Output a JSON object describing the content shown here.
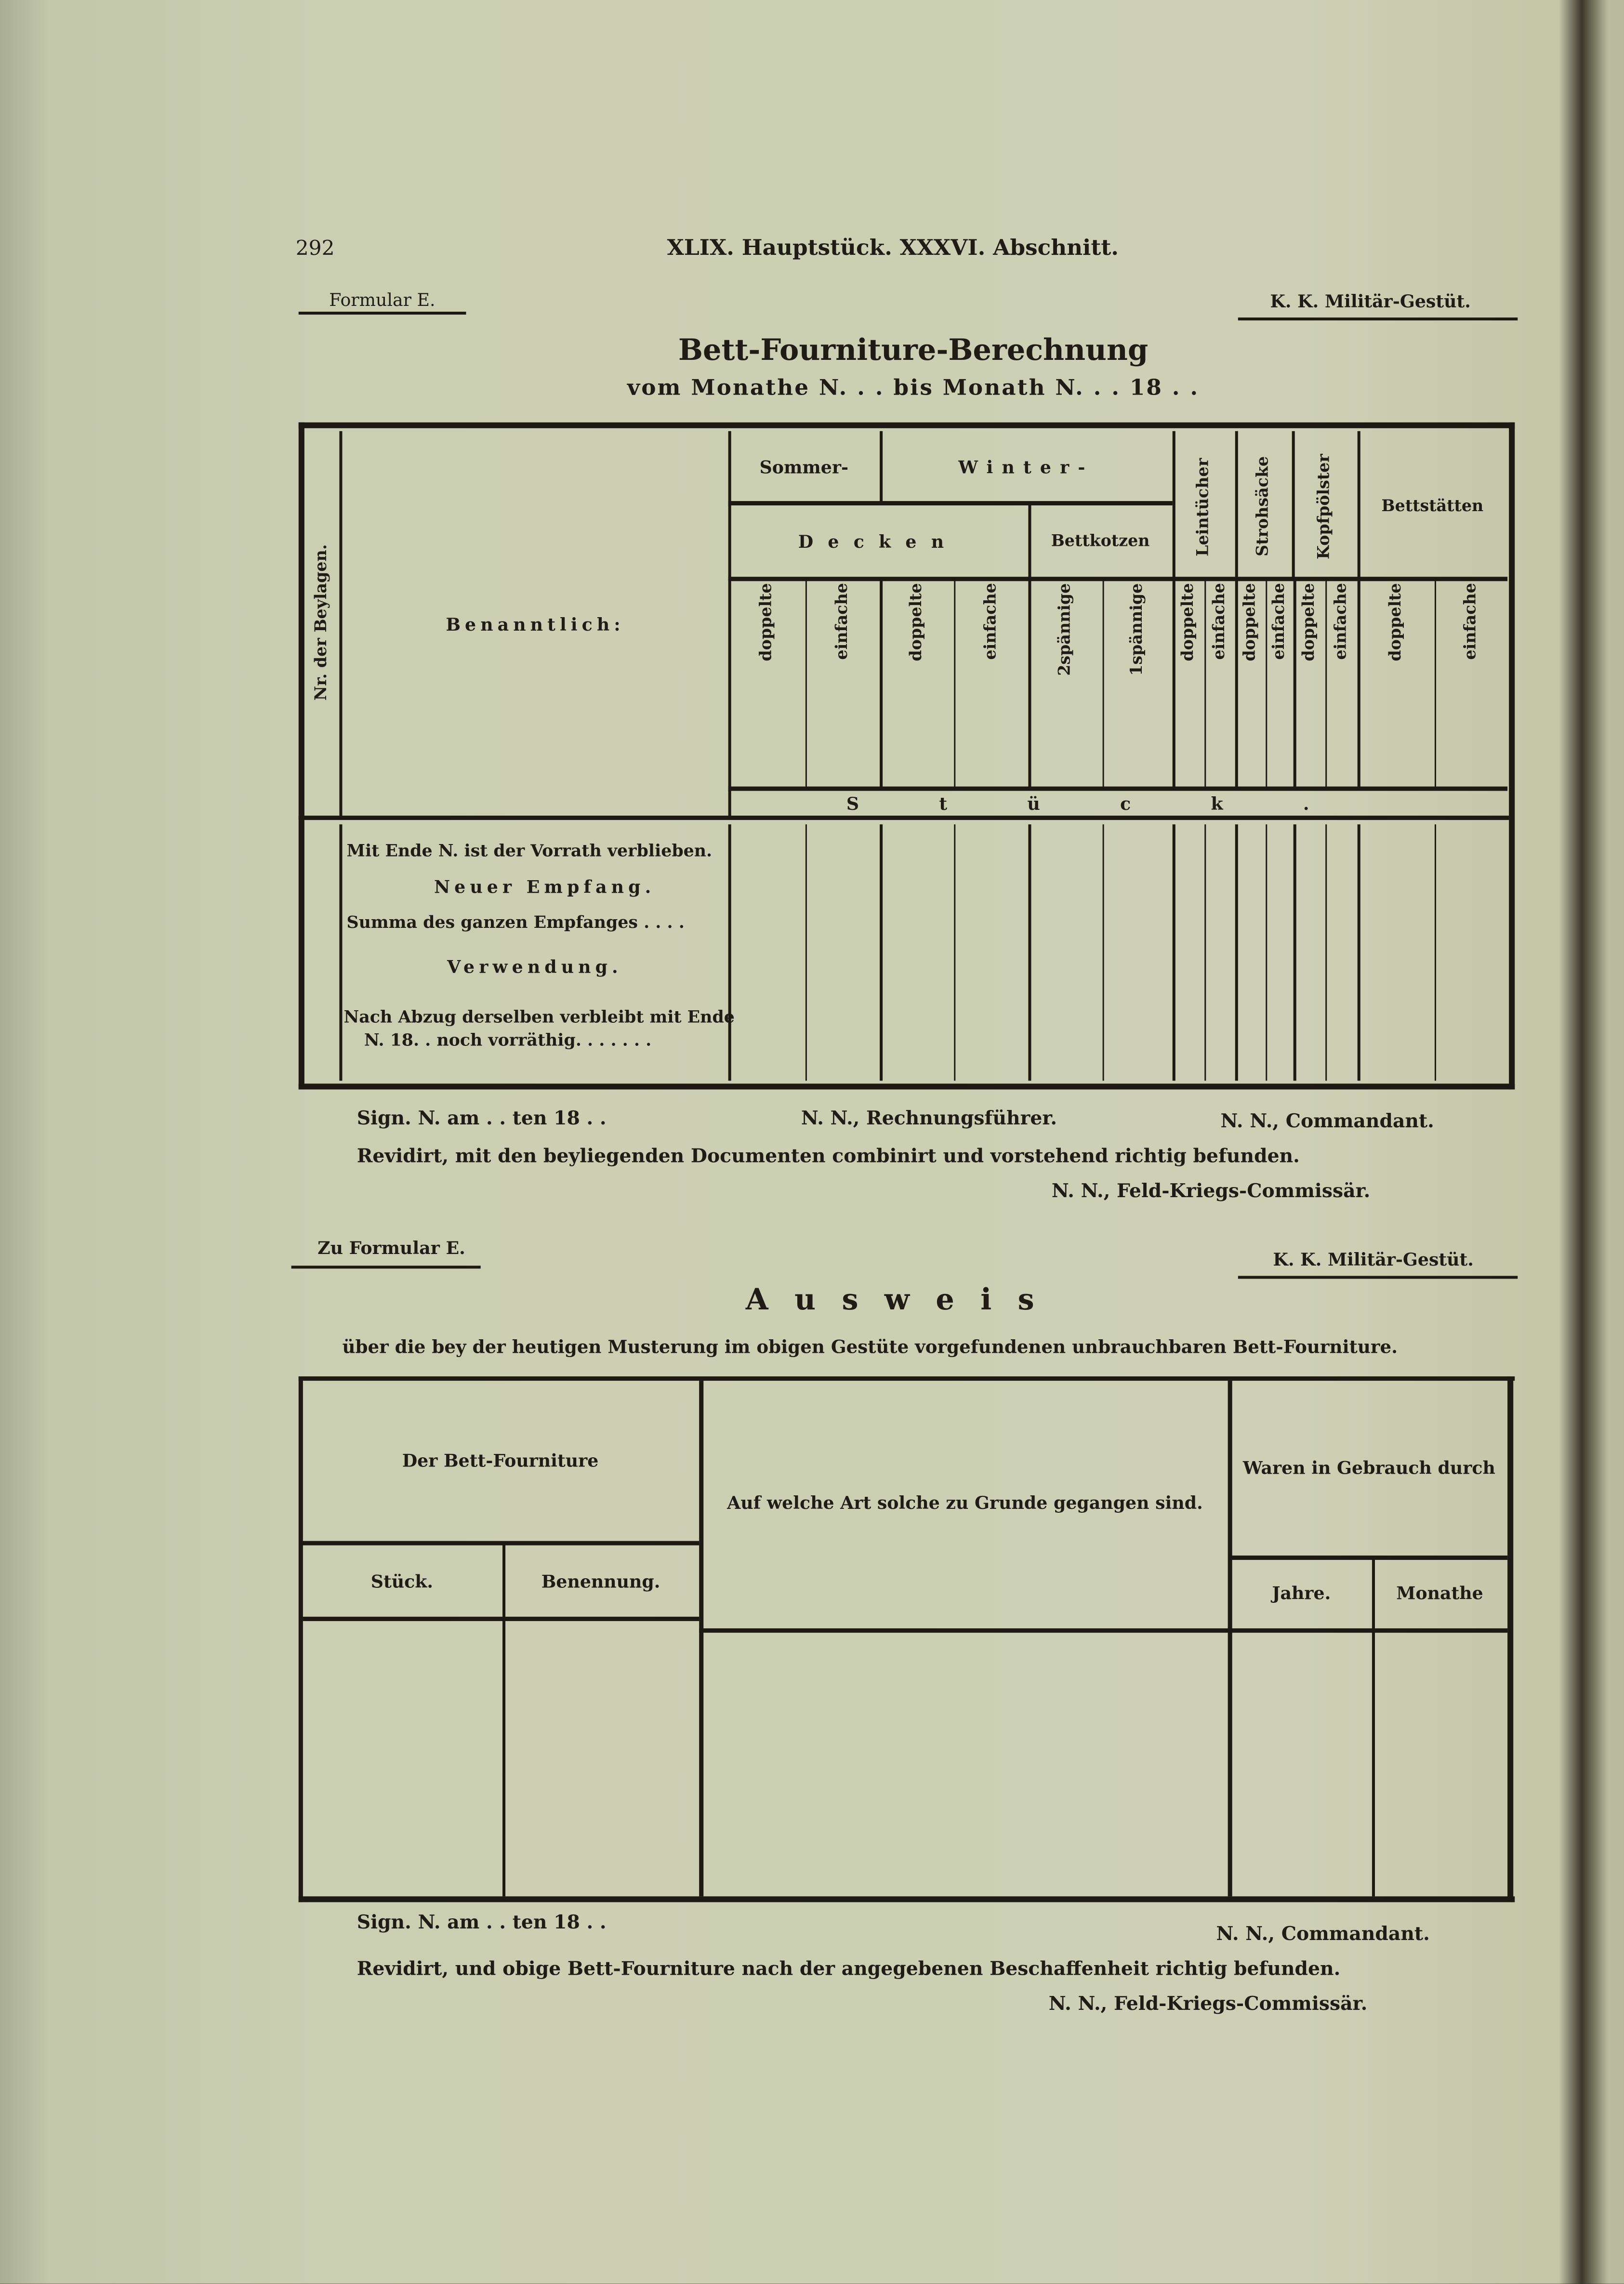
{
  "header": {
    "page_number": "292",
    "running_title": "XLIX. Hauptstück. XXXVI. Abschnitt."
  },
  "form1": {
    "form_label": "Formular E.",
    "institution": "K. K. Militär-Gestüt.",
    "title": "Bett-Fourniture-Berechnung",
    "subtitle": "vom Monathe N. . . bis Monath N. . . 18 . .",
    "col_beylagen": "Nr. der Beylagen.",
    "col_benanntlich": "Benanntlich:",
    "group_sommer": "Sommer-",
    "group_winter": "Winter-",
    "group_decken": "Decken",
    "group_bettkotzen": "Bettkotzen",
    "group_leintuecher": "Leintücher",
    "group_strohsaecke": "Strohsäcke",
    "group_kopfpoelster": "Kopfpölster",
    "group_bettstaetten": "Bettstätten",
    "subcols": [
      "doppelte",
      "einfache",
      "doppelte",
      "einfache",
      "2spännige",
      "1spännige",
      "doppelte",
      "einfache",
      "doppelte",
      "einfache",
      "doppelte",
      "einfache",
      "doppelte",
      "einfache"
    ],
    "unit_row": "Stück.",
    "rows": [
      "Mit Ende N. ist der Vorrath verblieben.",
      "Neuer Empfang.",
      "Summa des ganzen Empfanges . . . .",
      "Verwendung.",
      "Nach Abzug derselben verbleibt mit Ende",
      "N. 18. . noch vorräthig. . . . . . ."
    ],
    "sign_date": "Sign. N. am . . ten 18 . .",
    "sign_accountant": "N. N., Rechnungsführer.",
    "sign_commander": "N. N., Commandant.",
    "revision": "Revidirt, mit den beyliegenden Documenten combinirt und vorstehend richtig befunden.",
    "sign_commissioner": "N. N., Feld-Kriegs-Commissär."
  },
  "form2": {
    "form_label": "Zu Formular E.",
    "institution": "K. K. Militär-Gestüt.",
    "title": "Ausweis",
    "subtitle": "über die bey der heutigen Musterung im obigen Gestüte vorgefundenen unbrauchbaren Bett-Fourniture.",
    "col_group": "Der Bett-Fourniture",
    "col_stueck": "Stück.",
    "col_benennung": "Benennung.",
    "col_art": "Auf welche Art solche zu Grunde gegangen sind.",
    "col_gebrauch": "Waren in Gebrauch durch",
    "col_jahre": "Jahre.",
    "col_monathe": "Monathe",
    "sign_date": "Sign. N. am . . ten 18 . .",
    "sign_commander": "N. N., Commandant.",
    "revision": "Revidirt, und obige Bett-Fourniture nach der angegebenen Beschaffenheit richtig befunden.",
    "sign_commissioner": "N. N., Feld-Kriegs-Commissär."
  }
}
